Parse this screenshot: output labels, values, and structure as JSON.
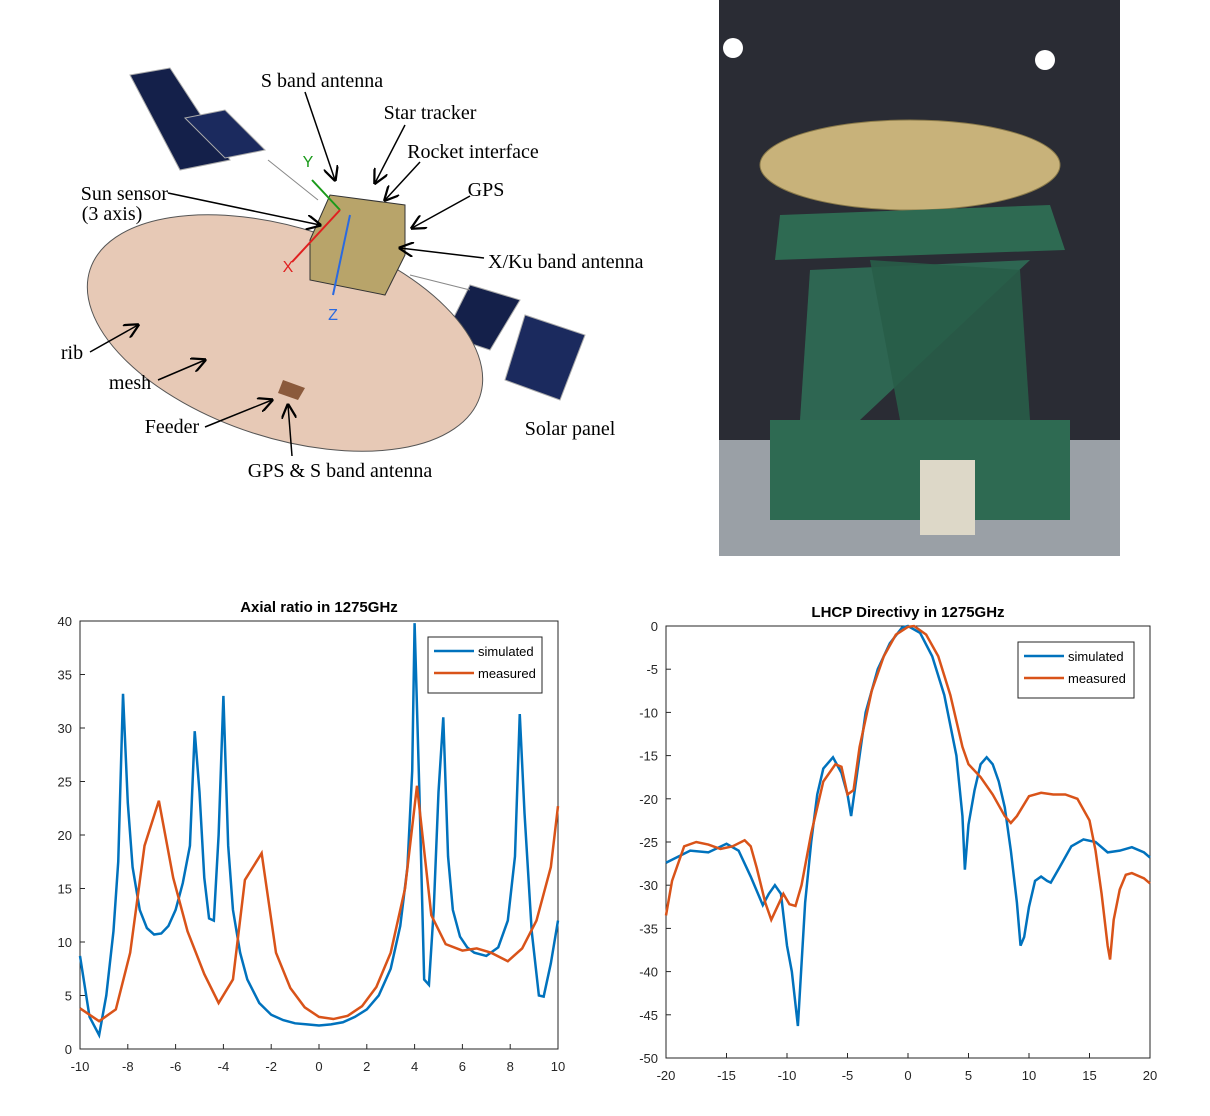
{
  "diagram": {
    "labels": [
      "S band antenna",
      "Star tracker",
      "Rocket interface",
      "GPS",
      "Sun sensor",
      "(3 axis)",
      "X/Ku band antenna",
      "rib",
      "mesh",
      "Feeder",
      "GPS & S band antenna",
      "Solar panel",
      "Y",
      "X",
      "Z"
    ]
  },
  "chart_data": [
    {
      "type": "line",
      "title": "Axial ratio in 1275GHz",
      "xlim": [
        -10,
        10
      ],
      "ylim": [
        0,
        40
      ],
      "xticks": [
        -10,
        -8,
        -6,
        -4,
        -2,
        0,
        2,
        4,
        6,
        8,
        10
      ],
      "yticks": [
        0,
        5,
        10,
        15,
        20,
        25,
        30,
        35,
        40
      ],
      "legend": "upper right",
      "series": [
        {
          "name": "simulated",
          "color": "#0072bd",
          "x": [
            -10,
            -9.6,
            -9.2,
            -8.9,
            -8.6,
            -8.4,
            -8.2,
            -8.0,
            -7.8,
            -7.5,
            -7.2,
            -6.9,
            -6.6,
            -6.3,
            -6.0,
            -5.7,
            -5.4,
            -5.2,
            -5.0,
            -4.8,
            -4.6,
            -4.4,
            -4.2,
            -4.0,
            -3.8,
            -3.6,
            -3.3,
            -3.0,
            -2.5,
            -2,
            -1.5,
            -1,
            -0.5,
            0,
            0.5,
            1,
            1.5,
            2,
            2.5,
            3,
            3.4,
            3.7,
            3.9,
            4.0,
            4.2,
            4.4,
            4.6,
            4.8,
            5.0,
            5.2,
            5.4,
            5.6,
            5.9,
            6.2,
            6.5,
            7,
            7.5,
            7.9,
            8.2,
            8.4,
            8.6,
            8.9,
            9.2,
            9.4,
            9.7,
            10
          ],
          "values": [
            8.7,
            3,
            1.3,
            5,
            11,
            17.5,
            33.2,
            23,
            17,
            13,
            11.3,
            10.7,
            10.8,
            11.5,
            13,
            15.5,
            19,
            29.7,
            24,
            16,
            12.2,
            12,
            20,
            33,
            19,
            13,
            9,
            6.5,
            4.3,
            3.2,
            2.7,
            2.4,
            2.3,
            2.2,
            2.3,
            2.5,
            3,
            3.7,
            5,
            7.5,
            11.5,
            17,
            26,
            39.8,
            24,
            6.5,
            6,
            13,
            24,
            31,
            18,
            13,
            10.5,
            9.5,
            9,
            8.7,
            9.5,
            12,
            18,
            31.3,
            22,
            11,
            5,
            4.9,
            8,
            12
          ]
        },
        {
          "name": "measured",
          "color": "#d95319",
          "x": [
            -10,
            -9.2,
            -8.5,
            -7.9,
            -7.3,
            -6.7,
            -6.1,
            -5.5,
            -4.8,
            -4.2,
            -3.6,
            -3.1,
            -2.4,
            -1.8,
            -1.2,
            -0.6,
            0,
            0.6,
            1.2,
            1.8,
            2.4,
            3,
            3.6,
            4.1,
            4.7,
            5.3,
            6,
            6.6,
            7.2,
            7.9,
            8.5,
            9.1,
            9.7,
            10
          ],
          "values": [
            3.8,
            2.6,
            3.7,
            9,
            19,
            23.2,
            16,
            11,
            7,
            4.3,
            6.5,
            15.8,
            18.3,
            9,
            5.7,
            3.9,
            3,
            2.8,
            3.1,
            4,
            5.8,
            9,
            15,
            24.6,
            12.5,
            9.8,
            9.2,
            9.4,
            9,
            8.2,
            9.4,
            12,
            17,
            22.7
          ]
        }
      ]
    },
    {
      "type": "line",
      "title": "LHCP Directivy in 1275GHz",
      "xlim": [
        -20,
        20
      ],
      "ylim": [
        -50,
        0
      ],
      "xticks": [
        -20,
        -15,
        -10,
        -5,
        0,
        5,
        10,
        15,
        20
      ],
      "yticks": [
        -50,
        -45,
        -40,
        -35,
        -30,
        -25,
        -20,
        -15,
        -10,
        -5,
        0
      ],
      "legend": "upper right",
      "series": [
        {
          "name": "simulated",
          "color": "#0072bd",
          "x": [
            -20,
            -18,
            -16.5,
            -15,
            -14,
            -13,
            -12,
            -11.5,
            -11,
            -10.5,
            -10,
            -9.6,
            -9.1,
            -8.5,
            -8,
            -7.5,
            -7,
            -6.2,
            -5.5,
            -5,
            -4.7,
            -4.2,
            -3.5,
            -2.5,
            -1.5,
            -0.5,
            0,
            1,
            2,
            3,
            4,
            4.5,
            4.7,
            5,
            5.5,
            6,
            6.5,
            7,
            7.5,
            8,
            8.5,
            9,
            9.3,
            9.6,
            10,
            10.5,
            11,
            11.5,
            11.8,
            12.5,
            13.5,
            14.5,
            15.5,
            16.5,
            17.5,
            18.5,
            19.5,
            20
          ],
          "values": [
            -27.4,
            -26,
            -26.2,
            -25.2,
            -26,
            -29,
            -32.3,
            -31,
            -30,
            -31,
            -37,
            -40,
            -46.3,
            -32,
            -25,
            -19.5,
            -16.5,
            -15.2,
            -17,
            -19.5,
            -22,
            -17,
            -10,
            -5,
            -2,
            -0.2,
            0,
            -0.8,
            -3.5,
            -8,
            -15,
            -22,
            -28.2,
            -23,
            -19,
            -16,
            -15.2,
            -16,
            -18,
            -21,
            -26,
            -32,
            -37,
            -36,
            -32.5,
            -29.5,
            -29,
            -29.5,
            -29.7,
            -28,
            -25.5,
            -24.7,
            -25,
            -26.2,
            -26,
            -25.6,
            -26.2,
            -26.8
          ]
        },
        {
          "name": "measured",
          "color": "#d95319",
          "x": [
            -20,
            -19.5,
            -18.5,
            -17.5,
            -16.5,
            -15.5,
            -14.5,
            -13.5,
            -13,
            -12.5,
            -11.8,
            -11.3,
            -10.8,
            -10.3,
            -9.8,
            -9.3,
            -8.8,
            -8,
            -7,
            -6,
            -5.5,
            -5,
            -4.5,
            -4,
            -3,
            -2,
            -1,
            0,
            0.5,
            1.5,
            2.5,
            3.5,
            4.5,
            5,
            6,
            7,
            8,
            8.5,
            9,
            10,
            11,
            12,
            13,
            14,
            15,
            15.5,
            16,
            16.5,
            16.7,
            17,
            17.5,
            18,
            18.5,
            19.5,
            20
          ],
          "values": [
            -33.5,
            -29.5,
            -25.5,
            -25,
            -25.3,
            -25.8,
            -25.5,
            -24.8,
            -25.5,
            -28,
            -32,
            -34,
            -32.5,
            -31,
            -32.2,
            -32.4,
            -30,
            -24,
            -18,
            -16,
            -16.3,
            -19.5,
            -19,
            -14,
            -7.5,
            -3.5,
            -1,
            -0.1,
            0,
            -1,
            -3.5,
            -8,
            -14,
            -16,
            -17.5,
            -19.5,
            -22,
            -22.8,
            -22,
            -19.7,
            -19.3,
            -19.5,
            -19.5,
            -20,
            -22.5,
            -26,
            -31,
            -37,
            -38.6,
            -34,
            -30.5,
            -28.8,
            -28.6,
            -29.2,
            -29.8
          ]
        }
      ]
    }
  ]
}
